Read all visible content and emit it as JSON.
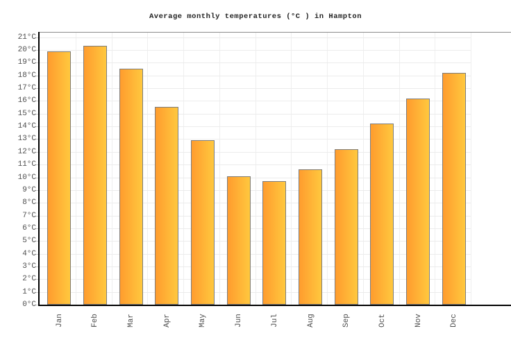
{
  "title": "Average monthly temperatures (°C ) in Hampton",
  "chart_data": {
    "type": "bar",
    "title": "Average monthly temperatures (°C ) in Hampton",
    "categories": [
      "Jan",
      "Feb",
      "Mar",
      "Apr",
      "May",
      "Jun",
      "Jul",
      "Aug",
      "Sep",
      "Oct",
      "Nov",
      "Dec"
    ],
    "values": [
      19.8,
      20.2,
      18.4,
      15.4,
      12.8,
      10.0,
      9.6,
      10.5,
      12.1,
      14.1,
      16.1,
      18.1
    ],
    "xlabel": "",
    "ylabel": "",
    "ylim": [
      0,
      21.4
    ],
    "y_tick_min": 0,
    "y_tick_max": 21,
    "y_tick_step": 1,
    "y_tick_suffix": "°C",
    "grid": true,
    "legend_position": "none"
  },
  "style": {
    "bar_gradient_left": "#ff9c2e",
    "bar_gradient_right": "#ffc83e",
    "bar_border": "#7d7d7d",
    "axis_color": "#000000",
    "grid_color": "#ececec",
    "label_color": "#4d4d4d"
  }
}
